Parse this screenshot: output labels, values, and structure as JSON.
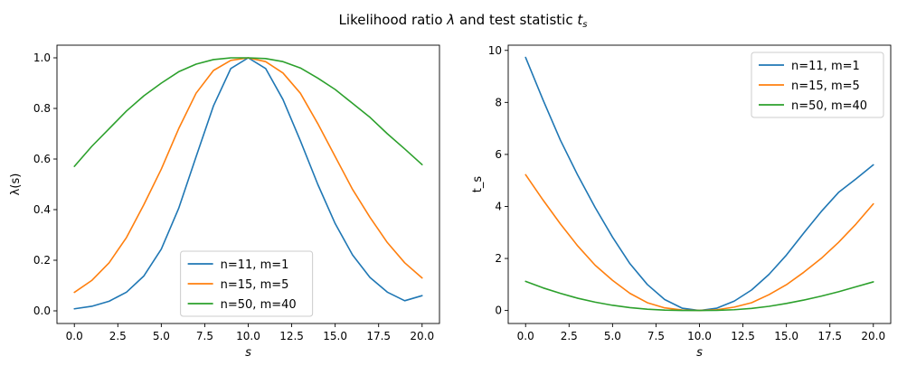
{
  "figure": {
    "title": "Likelihood ratio λ and test statistic t_s",
    "title_main": "Likelihood ratio ",
    "title_lambda": "λ",
    "title_mid": " and test statistic ",
    "title_t": "t",
    "title_sub": "s"
  },
  "chart_data": [
    {
      "type": "line",
      "xlabel": "s",
      "ylabel": "λ(s)",
      "xlim": [
        -1.0,
        21.0
      ],
      "ylim": [
        -0.05,
        1.05
      ],
      "xticks": [
        0.0,
        2.5,
        5.0,
        7.5,
        10.0,
        12.5,
        15.0,
        17.5,
        20.0
      ],
      "xtick_labels": [
        "0.0",
        "2.5",
        "5.0",
        "7.5",
        "10.0",
        "12.5",
        "15.0",
        "17.5",
        "20.0"
      ],
      "yticks": [
        0.0,
        0.2,
        0.4,
        0.6,
        0.8,
        1.0
      ],
      "ytick_labels": [
        "0.0",
        "0.2",
        "0.4",
        "0.6",
        "0.8",
        "1.0"
      ],
      "grid": false,
      "legend_position": "bottom-center",
      "x": [
        0.0,
        1.0,
        2.0,
        3.0,
        4.0,
        5.0,
        6.0,
        7.0,
        8.0,
        9.0,
        10.0,
        11.0,
        12.0,
        13.0,
        14.0,
        15.0,
        16.0,
        17.0,
        18.0,
        19.0,
        20.0
      ],
      "series": [
        {
          "name": "n=11, m=1",
          "color": "#1f77b4",
          "values": [
            0.008,
            0.018,
            0.038,
            0.074,
            0.138,
            0.244,
            0.405,
            0.609,
            0.81,
            0.958,
            1.0,
            0.958,
            0.835,
            0.672,
            0.5,
            0.345,
            0.221,
            0.132,
            0.074,
            0.04,
            0.06
          ]
        },
        {
          "name": "n=15, m=5",
          "color": "#ff7f0e",
          "values": [
            0.073,
            0.12,
            0.19,
            0.29,
            0.42,
            0.56,
            0.72,
            0.86,
            0.95,
            0.99,
            1.0,
            0.985,
            0.94,
            0.86,
            0.74,
            0.61,
            0.48,
            0.37,
            0.27,
            0.19,
            0.13
          ]
        },
        {
          "name": "n=50, m=40",
          "color": "#2ca02c",
          "values": [
            0.571,
            0.65,
            0.72,
            0.79,
            0.85,
            0.9,
            0.945,
            0.975,
            0.993,
            1.0,
            1.0,
            0.997,
            0.985,
            0.96,
            0.92,
            0.875,
            0.82,
            0.765,
            0.7,
            0.64,
            0.578
          ]
        }
      ]
    },
    {
      "type": "line",
      "xlabel": "s",
      "ylabel": "t_s",
      "xlim": [
        -1.0,
        21.0
      ],
      "ylim": [
        -0.5,
        10.2
      ],
      "xticks": [
        0.0,
        2.5,
        5.0,
        7.5,
        10.0,
        12.5,
        15.0,
        17.5,
        20.0
      ],
      "xtick_labels": [
        "0.0",
        "2.5",
        "5.0",
        "7.5",
        "10.0",
        "12.5",
        "15.0",
        "17.5",
        "20.0"
      ],
      "yticks": [
        0,
        2,
        4,
        6,
        8,
        10
      ],
      "ytick_labels": [
        "0",
        "2",
        "4",
        "6",
        "8",
        "10"
      ],
      "grid": false,
      "legend_position": "top-right",
      "x": [
        0.0,
        1.0,
        2.0,
        3.0,
        4.0,
        5.0,
        6.0,
        7.0,
        8.0,
        9.0,
        10.0,
        11.0,
        12.0,
        13.0,
        14.0,
        15.0,
        16.0,
        17.0,
        18.0,
        19.0,
        20.0
      ],
      "series": [
        {
          "name": "n=11, m=1",
          "color": "#1f77b4",
          "values": [
            9.73,
            8.1,
            6.55,
            5.2,
            3.96,
            2.82,
            1.8,
            1.0,
            0.42,
            0.09,
            0.0,
            0.09,
            0.36,
            0.79,
            1.39,
            2.13,
            2.98,
            3.8,
            4.54,
            5.06,
            5.6
          ]
        },
        {
          "name": "n=15, m=5",
          "color": "#ff7f0e",
          "values": [
            5.22,
            4.25,
            3.33,
            2.48,
            1.74,
            1.16,
            0.66,
            0.3,
            0.1,
            0.02,
            0.0,
            0.03,
            0.13,
            0.3,
            0.61,
            0.99,
            1.47,
            2.0,
            2.62,
            3.32,
            4.1
          ]
        },
        {
          "name": "n=50, m=40",
          "color": "#2ca02c",
          "values": [
            1.12,
            0.87,
            0.66,
            0.47,
            0.32,
            0.2,
            0.11,
            0.05,
            0.014,
            0.002,
            0.0,
            0.006,
            0.03,
            0.08,
            0.16,
            0.27,
            0.4,
            0.55,
            0.72,
            0.91,
            1.1
          ]
        }
      ]
    }
  ]
}
